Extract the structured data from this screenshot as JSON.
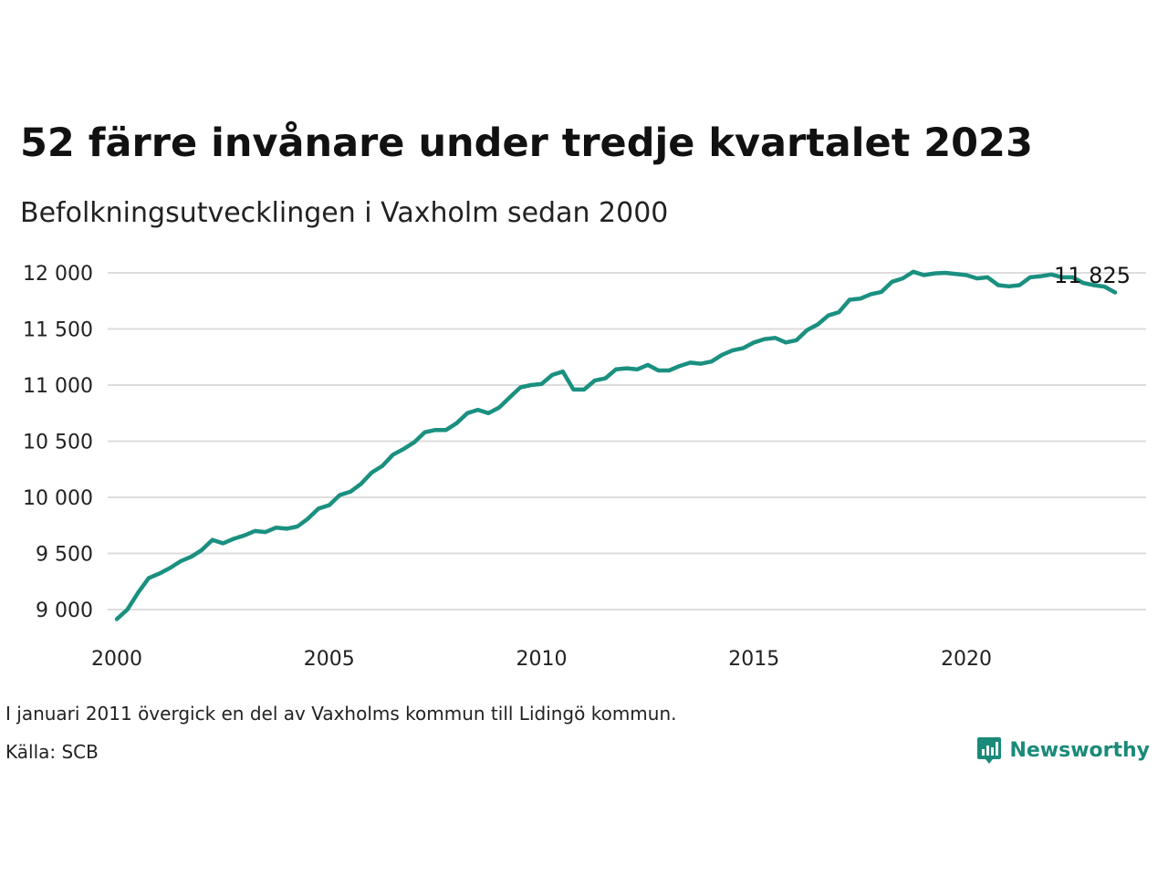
{
  "header": {
    "title": "52 färre invånare under tredje kvartalet 2023",
    "subtitle": "Befolkningsutvecklingen i Vaxholm sedan 2000"
  },
  "footer": {
    "note": "I januari 2011 övergick en del av Vaxholms kommun till Lidingö kommun.",
    "source": "Källa: SCB",
    "brand": "Newsworthy",
    "brand_icon": "bar-chart-logo-icon"
  },
  "colors": {
    "line": "#1a9080",
    "grid": "#dddddd",
    "brand": "#1a8a7a"
  },
  "chart_data": {
    "type": "line",
    "xlim": [
      2000,
      2024.5
    ],
    "ylim": [
      8900,
      12100
    ],
    "x_ticks": [
      2000,
      2005,
      2010,
      2015,
      2020
    ],
    "x_tick_labels": [
      "2000",
      "2005",
      "2010",
      "2015",
      "2020"
    ],
    "y_ticks": [
      9000,
      9500,
      10000,
      10500,
      11000,
      11500,
      12000
    ],
    "y_tick_labels": [
      "9 000",
      "9 500",
      "10 000",
      "10 500",
      "11 000",
      "11 500",
      "12 000"
    ],
    "grid": "horizontal",
    "end_label": "11 825",
    "series": [
      {
        "x": [
          "2000-Q1",
          "2000-Q2",
          "2000-Q3",
          "2000-Q4",
          "2001-Q1",
          "2001-Q2",
          "2001-Q3",
          "2001-Q4",
          "2002-Q1",
          "2002-Q2",
          "2002-Q3",
          "2002-Q4",
          "2003-Q1",
          "2003-Q2",
          "2003-Q3",
          "2003-Q4",
          "2004-Q1",
          "2004-Q2",
          "2004-Q3",
          "2004-Q4",
          "2005-Q1",
          "2005-Q2",
          "2005-Q3",
          "2005-Q4",
          "2006-Q1",
          "2006-Q2",
          "2006-Q3",
          "2006-Q4",
          "2007-Q1",
          "2007-Q2",
          "2007-Q3",
          "2007-Q4",
          "2008-Q1",
          "2008-Q2",
          "2008-Q3",
          "2008-Q4",
          "2009-Q1",
          "2009-Q2",
          "2009-Q3",
          "2009-Q4",
          "2010-Q1",
          "2010-Q2",
          "2010-Q3",
          "2010-Q4",
          "2011-Q1",
          "2011-Q2",
          "2011-Q3",
          "2011-Q4",
          "2012-Q1",
          "2012-Q2",
          "2012-Q3",
          "2012-Q4",
          "2013-Q1",
          "2013-Q2",
          "2013-Q3",
          "2013-Q4",
          "2014-Q1",
          "2014-Q2",
          "2014-Q3",
          "2014-Q4",
          "2015-Q1",
          "2015-Q2",
          "2015-Q3",
          "2015-Q4",
          "2016-Q1",
          "2016-Q2",
          "2016-Q3",
          "2016-Q4",
          "2017-Q1",
          "2017-Q2",
          "2017-Q3",
          "2017-Q4",
          "2018-Q1",
          "2018-Q2",
          "2018-Q3",
          "2018-Q4",
          "2019-Q1",
          "2019-Q2",
          "2019-Q3",
          "2019-Q4",
          "2020-Q1",
          "2020-Q2",
          "2020-Q3",
          "2020-Q4",
          "2021-Q1",
          "2021-Q2",
          "2021-Q3",
          "2021-Q4",
          "2022-Q1",
          "2022-Q2",
          "2022-Q3",
          "2022-Q4",
          "2023-Q1",
          "2023-Q2",
          "2023-Q3"
        ],
        "values": [
          8915,
          9000,
          9150,
          9280,
          9320,
          9370,
          9430,
          9470,
          9530,
          9620,
          9590,
          9630,
          9660,
          9700,
          9690,
          9730,
          9720,
          9740,
          9810,
          9900,
          9930,
          10020,
          10050,
          10120,
          10220,
          10280,
          10380,
          10430,
          10490,
          10580,
          10600,
          10600,
          10660,
          10750,
          10780,
          10750,
          10800,
          10890,
          10980,
          11000,
          11010,
          11090,
          11120,
          10960,
          10960,
          11040,
          11060,
          11140,
          11150,
          11140,
          11180,
          11130,
          11130,
          11170,
          11200,
          11190,
          11210,
          11270,
          11310,
          11330,
          11380,
          11410,
          11420,
          11380,
          11400,
          11490,
          11540,
          11620,
          11650,
          11760,
          11770,
          11810,
          11830,
          11920,
          11950,
          12010,
          11980,
          11995,
          12000,
          11990,
          11980,
          11950,
          11960,
          11890,
          11880,
          11890,
          11960,
          11970,
          11985,
          11960,
          11960,
          11910,
          11890,
          11877,
          11825
        ]
      }
    ]
  }
}
